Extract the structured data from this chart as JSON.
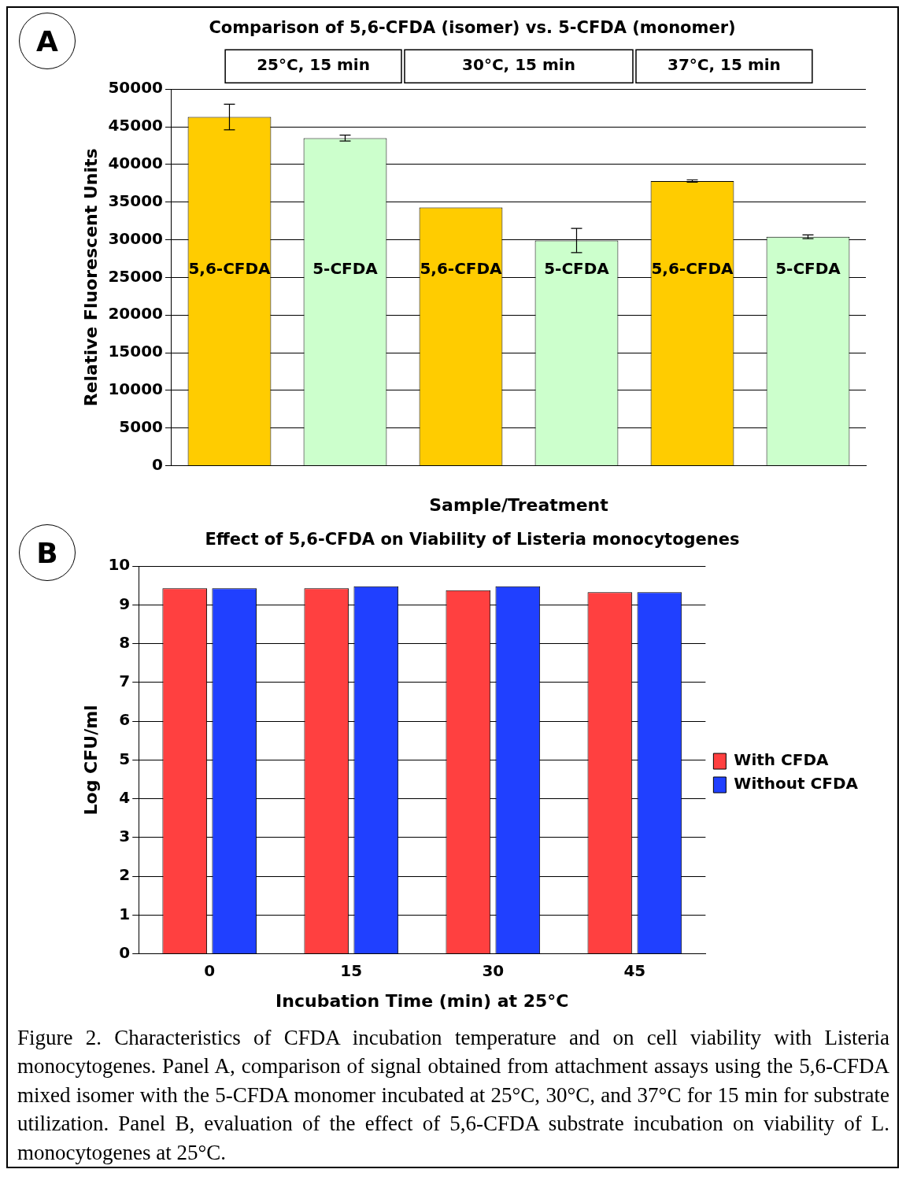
{
  "chart_data": [
    {
      "type": "bar",
      "title": "Comparison of 5,6-CFDA (isomer) vs. 5-CFDA (monomer)",
      "xlabel": "Sample/Treatment",
      "ylabel": "Relative Fluorescent Units",
      "categories": [
        "5,6-CFDA",
        "5-CFDA",
        "5,6-CFDA",
        "5-CFDA",
        "5,6-CFDA",
        "5-CFDA"
      ],
      "values": [
        46300,
        43500,
        34300,
        29900,
        37800,
        30400
      ],
      "errors": [
        1700,
        400,
        null,
        1600,
        150,
        250
      ],
      "colors": [
        "#ffcc00",
        "#ccffcc",
        "#ffcc00",
        "#ccffcc",
        "#ffcc00",
        "#ccffcc"
      ],
      "ylim": [
        0,
        50000
      ],
      "yticks": [
        0,
        5000,
        10000,
        15000,
        20000,
        25000,
        30000,
        35000,
        40000,
        45000,
        50000
      ],
      "grid": "y",
      "tick_labels": "y",
      "annotations": [
        "A",
        "25°C, 15 min",
        "30°C, 15 min",
        "37°C, 15 min"
      ]
    },
    {
      "type": "bar",
      "title": "Effect of 5,6-CFDA on Viability of Listeria monocytogenes",
      "xlabel": "Incubation Time (min) at 25°C",
      "ylabel": "Log CFU/ml",
      "categories": [
        "0",
        "15",
        "30",
        "45"
      ],
      "series": [
        {
          "name": "With CFDA",
          "color": "#ff4040",
          "values": [
            9.43,
            9.43,
            9.38,
            9.33
          ]
        },
        {
          "name": "Without CFDA",
          "color": "#2040ff",
          "values": [
            9.43,
            9.48,
            9.48,
            9.33
          ]
        }
      ],
      "ylim": [
        0,
        10
      ],
      "yticks": [
        0,
        1,
        2,
        3,
        4,
        5,
        6,
        7,
        8,
        9,
        10
      ],
      "grid": "y",
      "legend": "right",
      "annotations": [
        "B",
        "Figure 2.  Characteristics of CFDA incubation temperature and on cell viability with Listeria monocytogenes.  Panel A, comparison of signal obtained from attachment assays using the 5,6-CFDA mixed isomer with the 5-CFDA monomer incubated at 25°C, 30°C, and 37°C for 15 min for substrate utilization.  Panel B, evaluation of the effect of 5,6-CFDA substrate incubation on viability of L. monocytogenes at 25°C."
      ]
    }
  ]
}
